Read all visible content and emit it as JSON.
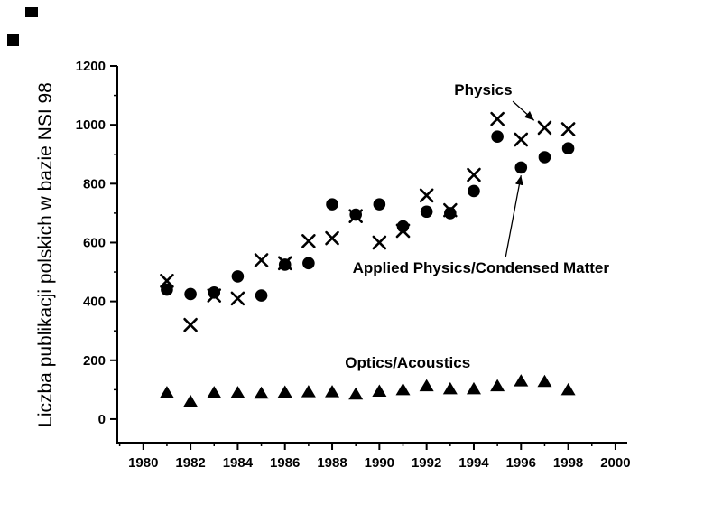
{
  "chart_data": {
    "type": "scatter",
    "title": "",
    "xlabel": "",
    "ylabel": "Liczba publikacji polskich w bazie NSI 98",
    "xlim": [
      1978.9,
      2000.5
    ],
    "ylim": [
      -80,
      1200
    ],
    "x_ticks": [
      1980,
      1982,
      1984,
      1986,
      1988,
      1990,
      1992,
      1994,
      1996,
      1998,
      2000
    ],
    "y_ticks": [
      0,
      200,
      400,
      600,
      800,
      1000,
      1200
    ],
    "grid": false,
    "legend_position": "inline-annotations",
    "marker_color": "#000000",
    "x": [
      1981,
      1982,
      1983,
      1984,
      1985,
      1986,
      1987,
      1988,
      1989,
      1990,
      1991,
      1992,
      1993,
      1994,
      1995,
      1996,
      1997,
      1998
    ],
    "series": [
      {
        "name": "Physics",
        "marker": "x",
        "values": [
          470,
          320,
          420,
          410,
          540,
          530,
          605,
          615,
          690,
          600,
          640,
          760,
          710,
          830,
          1020,
          950,
          990,
          985
        ]
      },
      {
        "name": "Applied Physics/Condensed Matter",
        "marker": "circle",
        "values": [
          440,
          425,
          430,
          485,
          420,
          525,
          530,
          730,
          695,
          730,
          655,
          705,
          700,
          775,
          960,
          855,
          890,
          920
        ]
      },
      {
        "name": "Optics/Acoustics",
        "marker": "triangle",
        "values": [
          90,
          60,
          90,
          90,
          88,
          92,
          93,
          93,
          85,
          95,
          100,
          113,
          103,
          103,
          113,
          130,
          128,
          100
        ]
      }
    ],
    "annotations": [
      {
        "text": "Physics",
        "x": 1994.4,
        "y": 1117,
        "arrow": {
          "from": [
            1995.65,
            1080
          ],
          "to": [
            1996.55,
            1015
          ]
        }
      },
      {
        "text": "Applied Physics/Condensed Matter",
        "x": 1994.3,
        "y": 512,
        "arrow": {
          "from": [
            1995.35,
            552
          ],
          "to": [
            1996.0,
            828
          ]
        }
      },
      {
        "text": "Optics/Acoustics",
        "x": 1991.2,
        "y": 190,
        "arrow": null
      }
    ]
  }
}
